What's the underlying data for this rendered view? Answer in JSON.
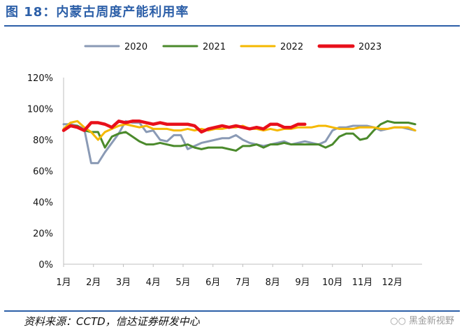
{
  "figure": {
    "title": "图 18：内蒙古周度产能利用率",
    "source": "资料来源：CCTD，信达证券研发中心",
    "watermark": "黑金新视野"
  },
  "chart_data": {
    "type": "line",
    "title": "",
    "xlabel": "",
    "ylabel": "",
    "x_ticks": [
      "1月",
      "2月",
      "3月",
      "4月",
      "5月",
      "6月",
      "7月",
      "8月",
      "9月",
      "10月",
      "11月",
      "12月"
    ],
    "x_unit": "week",
    "x_range": [
      1,
      53
    ],
    "ylim": [
      0,
      120
    ],
    "y_ticks": [
      0,
      20,
      40,
      60,
      80,
      100,
      120
    ],
    "y_tick_labels": [
      "0%",
      "20%",
      "40%",
      "60%",
      "80%",
      "100%",
      "120%"
    ],
    "grid": false,
    "legend_position": "top",
    "series": [
      {
        "name": "2020",
        "color": "#8a9ab5",
        "values": [
          90,
          90,
          89,
          87,
          65,
          65,
          72,
          78,
          84,
          92,
          91,
          91,
          85,
          86,
          80,
          79,
          83,
          83,
          74,
          76,
          78,
          79,
          80,
          81,
          81,
          83,
          80,
          78,
          77,
          76,
          77,
          78,
          79,
          77,
          78,
          79,
          78,
          77,
          79,
          86,
          88,
          88,
          89,
          89,
          89,
          88,
          86,
          87,
          88,
          88,
          87,
          86
        ]
      },
      {
        "name": "2021",
        "color": "#4b8a2c",
        "values": [
          86,
          89,
          89,
          86,
          85,
          85,
          75,
          82,
          84,
          85,
          82,
          79,
          77,
          77,
          78,
          77,
          76,
          76,
          77,
          75,
          74,
          75,
          75,
          75,
          74,
          73,
          76,
          76,
          77,
          75,
          77,
          77,
          78,
          77,
          77,
          77,
          77,
          77,
          75,
          77,
          82,
          84,
          84,
          80,
          81,
          86,
          90,
          92,
          91,
          91,
          91,
          90
        ]
      },
      {
        "name": "2022",
        "color": "#f5b800",
        "values": [
          87,
          91,
          92,
          88,
          85,
          80,
          85,
          87,
          89,
          90,
          89,
          88,
          89,
          87,
          87,
          87,
          86,
          86,
          87,
          86,
          87,
          86,
          87,
          87,
          88,
          88,
          89,
          87,
          87,
          86,
          87,
          86,
          87,
          87,
          88,
          88,
          88,
          89,
          89,
          88,
          87,
          87,
          87,
          88,
          88,
          88,
          87,
          87,
          88,
          88,
          88,
          86
        ]
      },
      {
        "name": "2023",
        "color": "#e8101b",
        "values": [
          86,
          89,
          88,
          86,
          91,
          91,
          90,
          88,
          92,
          91,
          92,
          92,
          91,
          90,
          91,
          90,
          90,
          90,
          90,
          89,
          85,
          87,
          88,
          89,
          88,
          89,
          88,
          87,
          88,
          87,
          90,
          90,
          88,
          88,
          90,
          90
        ]
      }
    ]
  }
}
